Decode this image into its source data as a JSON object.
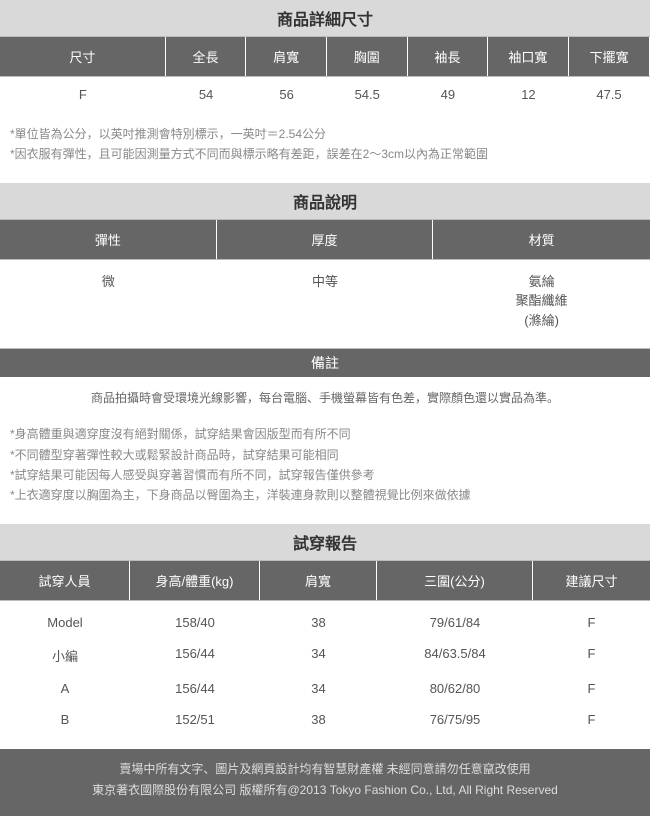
{
  "sections": {
    "size_title": "商品詳細尺寸",
    "desc_title": "商品說明",
    "remark_title": "備註",
    "try_title": "試穿報告"
  },
  "size_table": {
    "headers": [
      "尺寸",
      "全長",
      "肩寬",
      "胸圍",
      "袖長",
      "袖口寬",
      "下擺寬"
    ],
    "row": [
      "F",
      "54",
      "56",
      "54.5",
      "49",
      "12",
      "47.5"
    ]
  },
  "size_notes": [
    "*單位皆為公分，以英吋推測會特別標示，一英吋＝2.54公分",
    "*因衣服有彈性，且可能因測量方式不同而與標示略有差距，誤差在2～3cm以內為正常範圍"
  ],
  "desc_table": {
    "headers": [
      "彈性",
      "厚度",
      "材質"
    ],
    "row": [
      "微",
      "中等",
      "氨綸\n聚酯纖維\n(滌綸)"
    ]
  },
  "remark_text": "商品拍攝時會受環境光線影響，每台電腦、手機螢幕皆有色差，實際顏色還以實品為準。",
  "remark_notes": [
    "*身高體重與適穿度沒有絕對關係，試穿結果會因版型而有所不同",
    "*不同體型穿著彈性較大或鬆緊設計商品時，試穿結果可能相同",
    "*試穿結果可能因每人感受與穿著習慣而有所不同，試穿報告僅供參考",
    "*上衣適穿度以胸圍為主，下身商品以臀圍為主，洋裝連身款則以整體視覺比例來做依據"
  ],
  "try_table": {
    "headers": [
      "試穿人員",
      "身高/體重(kg)",
      "肩寬",
      "三圍(公分)",
      "建議尺寸"
    ],
    "rows": [
      [
        "Model",
        "158/40",
        "38",
        "79/61/84",
        "F"
      ],
      [
        "小編",
        "156/44",
        "34",
        "84/63.5/84",
        "F"
      ],
      [
        "A",
        "156/44",
        "34",
        "80/62/80",
        "F"
      ],
      [
        "B",
        "152/51",
        "38",
        "76/75/95",
        "F"
      ]
    ]
  },
  "footer": [
    "賣場中所有文字、圖片及網頁設計均有智慧財產權 未經同意請勿任意竄改使用",
    "東京著衣國際股份有限公司 版權所有@2013 Tokyo Fashion Co., Ltd, All Right Reserved"
  ]
}
